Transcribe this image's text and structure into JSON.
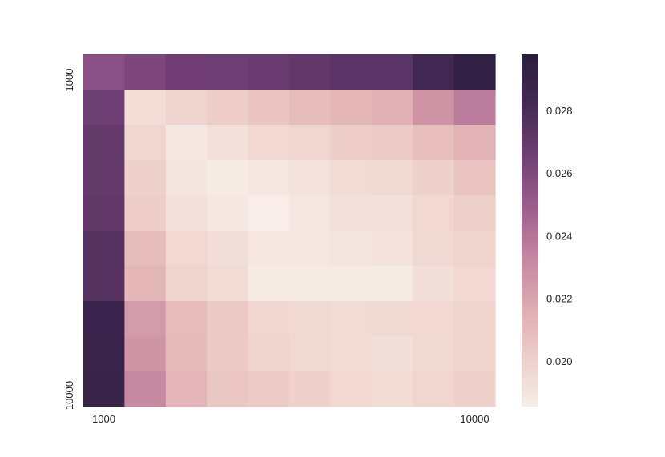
{
  "chart_data": {
    "type": "heatmap",
    "title": "",
    "xlabel": "",
    "ylabel": "",
    "x_tick_labels": [
      "1000",
      "10000"
    ],
    "y_tick_labels": [
      "1000",
      "10000"
    ],
    "n_cols": 10,
    "n_rows": 10,
    "values": [
      [
        0.0256,
        0.0261,
        0.0266,
        0.0267,
        0.0268,
        0.0271,
        0.0274,
        0.0274,
        0.0285,
        0.0294
      ],
      [
        0.0267,
        0.0194,
        0.0199,
        0.0202,
        0.0206,
        0.0209,
        0.0212,
        0.0215,
        0.0227,
        0.0237
      ],
      [
        0.027,
        0.0198,
        0.0188,
        0.0192,
        0.0197,
        0.0198,
        0.0202,
        0.0203,
        0.0208,
        0.0214
      ],
      [
        0.027,
        0.02,
        0.019,
        0.0187,
        0.0189,
        0.0191,
        0.0195,
        0.0196,
        0.02,
        0.0206
      ],
      [
        0.0271,
        0.0202,
        0.0192,
        0.0188,
        0.0186,
        0.0189,
        0.0192,
        0.0192,
        0.0197,
        0.0201
      ],
      [
        0.0275,
        0.0209,
        0.0197,
        0.0193,
        0.0189,
        0.0189,
        0.019,
        0.0191,
        0.0196,
        0.0199
      ],
      [
        0.0275,
        0.0212,
        0.0199,
        0.0195,
        0.0187,
        0.0187,
        0.0187,
        0.0187,
        0.0193,
        0.0197
      ],
      [
        0.0288,
        0.0224,
        0.0209,
        0.0204,
        0.0198,
        0.0196,
        0.0195,
        0.0196,
        0.0197,
        0.0199
      ],
      [
        0.0289,
        0.0226,
        0.021,
        0.0204,
        0.0199,
        0.0196,
        0.0195,
        0.0193,
        0.0196,
        0.0199
      ],
      [
        0.029,
        0.0232,
        0.0213,
        0.0205,
        0.0203,
        0.02,
        0.0197,
        0.0195,
        0.0198,
        0.02
      ]
    ],
    "colorbar": {
      "vmin": 0.01855,
      "vmax": 0.0298,
      "ticks": [
        "0.020",
        "0.022",
        "0.024",
        "0.026",
        "0.028"
      ],
      "tick_values": [
        0.02,
        0.022,
        0.024,
        0.026,
        0.028
      ],
      "colormap_stops": [
        "#f7ede8",
        "#edcec8",
        "#ddaab0",
        "#c4849f",
        "#9c5b8d",
        "#6f3f73",
        "#452a55",
        "#2b1d3d"
      ]
    }
  }
}
